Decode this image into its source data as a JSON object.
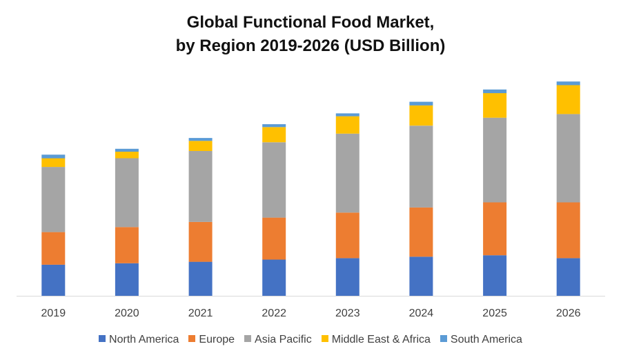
{
  "chart_data": {
    "type": "bar",
    "stacked": true,
    "title_lines": [
      "Global Functional Food Market,",
      "by Region 2019-2026 (USD Billion)"
    ],
    "xlabel": "",
    "ylabel": "",
    "ylim": [
      0,
      300
    ],
    "grid": false,
    "legend_position": "bottom",
    "categories": [
      "2019",
      "2020",
      "2021",
      "2022",
      "2023",
      "2024",
      "2025",
      "2026"
    ],
    "series": [
      {
        "name": "North America",
        "color": "#4472C4",
        "values": [
          43,
          45,
          47,
          50,
          52,
          54,
          56,
          52
        ]
      },
      {
        "name": "Europe",
        "color": "#ED7D31",
        "values": [
          45,
          50,
          55,
          58,
          63,
          68,
          73,
          77
        ]
      },
      {
        "name": "Asia Pacific",
        "color": "#A5A5A5",
        "values": [
          90,
          95,
          98,
          104,
          109,
          113,
          117,
          122
        ]
      },
      {
        "name": "Middle East & Africa",
        "color": "#FFC000",
        "values": [
          12,
          9,
          14,
          21,
          24,
          28,
          34,
          40
        ]
      },
      {
        "name": "South America",
        "color": "#5B9BD5",
        "values": [
          5,
          4,
          4,
          4,
          4,
          5,
          5,
          5
        ]
      }
    ]
  }
}
